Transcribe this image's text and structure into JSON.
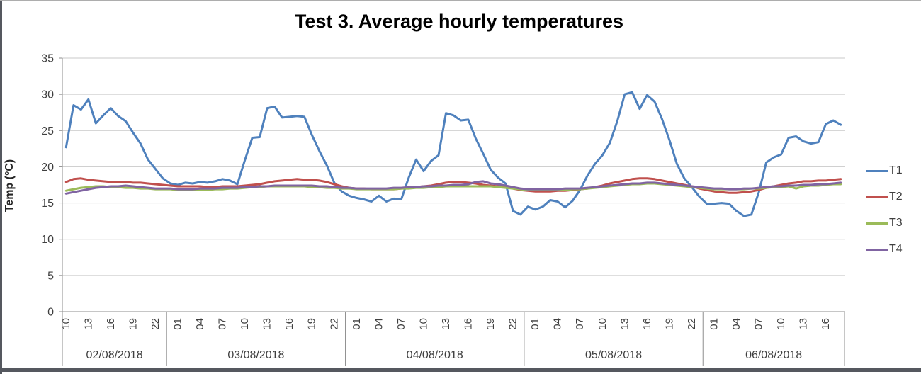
{
  "window": {
    "background": "#ffffff",
    "frame_border_color": "#adadad",
    "bottom_bar_color": "#55585f",
    "gridline_color": "#c9c9c9",
    "axis_line_color": "#8e8e8e",
    "axis_text_color": "#3f3f3f"
  },
  "chart_data": {
    "type": "line",
    "title": "Test 3. Average hourly temperatures",
    "xlabel": "",
    "ylabel": "Temp (°C)",
    "ylim": [
      0,
      35
    ],
    "y_ticks": [
      0,
      5,
      10,
      15,
      20,
      25,
      30,
      35
    ],
    "grid": "horizontal",
    "legend_position": "right",
    "x_note": "hourly categories grouped by date; tick labels shown every 3rd hour",
    "x_days": [
      {
        "date": "02/08/2018",
        "hours": [
          10,
          11,
          12,
          13,
          14,
          15,
          16,
          17,
          18,
          19,
          20,
          21,
          22,
          23
        ]
      },
      {
        "date": "03/08/2018",
        "hours": [
          0,
          1,
          2,
          3,
          4,
          5,
          6,
          7,
          8,
          9,
          10,
          11,
          12,
          13,
          14,
          15,
          16,
          17,
          18,
          19,
          20,
          21,
          22,
          23
        ]
      },
      {
        "date": "04/08/2018",
        "hours": [
          0,
          1,
          2,
          3,
          4,
          5,
          6,
          7,
          8,
          9,
          10,
          11,
          12,
          13,
          14,
          15,
          16,
          17,
          18,
          19,
          20,
          21,
          22,
          23
        ]
      },
      {
        "date": "05/08/2018",
        "hours": [
          0,
          1,
          2,
          3,
          4,
          5,
          6,
          7,
          8,
          9,
          10,
          11,
          12,
          13,
          14,
          15,
          16,
          17,
          18,
          19,
          20,
          21,
          22,
          23
        ]
      },
      {
        "date": "06/08/2018",
        "hours": [
          0,
          1,
          2,
          3,
          4,
          5,
          6,
          7,
          8,
          9,
          10,
          11,
          12,
          13,
          14,
          15,
          16,
          17,
          18
        ]
      }
    ],
    "hour_labels_shown": [
      "10",
      "13",
      "16",
      "19",
      "22",
      "01",
      "04",
      "07",
      "10",
      "13",
      "16",
      "19",
      "22",
      "01",
      "04",
      "07",
      "10",
      "13",
      "16",
      "19",
      "22",
      "01",
      "04",
      "07",
      "10",
      "13",
      "16",
      "19",
      "22",
      "01",
      "04",
      "07",
      "10",
      "13",
      "16"
    ],
    "series": [
      {
        "name": "T1",
        "color": "#4F81BD",
        "values": [
          22.7,
          28.5,
          27.9,
          29.3,
          26.0,
          27.1,
          28.1,
          27.0,
          26.3,
          24.7,
          23.2,
          21.0,
          19.7,
          18.4,
          17.7,
          17.5,
          17.8,
          17.7,
          17.9,
          17.8,
          18.0,
          18.3,
          18.1,
          17.6,
          20.9,
          24.0,
          24.1,
          28.1,
          28.3,
          26.8,
          26.9,
          27.0,
          26.9,
          24.4,
          22.2,
          20.2,
          17.8,
          16.6,
          16.0,
          15.7,
          15.5,
          15.2,
          16.0,
          15.2,
          15.6,
          15.5,
          18.5,
          21.0,
          19.4,
          20.8,
          21.6,
          27.4,
          27.1,
          26.4,
          26.5,
          23.9,
          21.8,
          19.6,
          18.5,
          17.7,
          13.9,
          13.4,
          14.5,
          14.1,
          14.5,
          15.4,
          15.2,
          14.4,
          15.3,
          16.8,
          18.8,
          20.4,
          21.6,
          23.3,
          26.3,
          30.0,
          30.3,
          28.0,
          29.9,
          29.0,
          26.6,
          23.7,
          20.4,
          18.4,
          17.2,
          15.9,
          14.9,
          14.9,
          15.0,
          14.9,
          13.9,
          13.2,
          13.4,
          16.5,
          20.6,
          21.3,
          21.7,
          24.0,
          24.2,
          23.5,
          23.2,
          23.4,
          25.9,
          26.4,
          25.8
        ]
      },
      {
        "name": "T2",
        "color": "#C0504D",
        "values": [
          17.9,
          18.3,
          18.4,
          18.2,
          18.1,
          18.0,
          17.9,
          17.9,
          17.9,
          17.8,
          17.8,
          17.7,
          17.6,
          17.5,
          17.4,
          17.3,
          17.3,
          17.3,
          17.3,
          17.2,
          17.2,
          17.3,
          17.3,
          17.3,
          17.4,
          17.5,
          17.6,
          17.8,
          18.0,
          18.1,
          18.2,
          18.3,
          18.2,
          18.2,
          18.1,
          17.9,
          17.6,
          17.3,
          17.1,
          17.0,
          17.0,
          16.9,
          16.9,
          16.9,
          16.9,
          17.0,
          17.1,
          17.2,
          17.3,
          17.4,
          17.6,
          17.8,
          17.9,
          17.9,
          17.8,
          17.7,
          17.5,
          17.4,
          17.3,
          17.2,
          17.0,
          16.8,
          16.7,
          16.6,
          16.6,
          16.6,
          16.7,
          16.7,
          16.8,
          16.9,
          17.0,
          17.2,
          17.4,
          17.7,
          17.9,
          18.1,
          18.3,
          18.4,
          18.4,
          18.3,
          18.1,
          17.9,
          17.7,
          17.5,
          17.3,
          17.0,
          16.8,
          16.6,
          16.5,
          16.4,
          16.4,
          16.5,
          16.6,
          16.8,
          17.1,
          17.3,
          17.5,
          17.7,
          17.8,
          18.0,
          18.0,
          18.1,
          18.1,
          18.2,
          18.3
        ]
      },
      {
        "name": "T3",
        "color": "#9BBB59",
        "values": [
          16.7,
          16.9,
          17.1,
          17.2,
          17.3,
          17.3,
          17.2,
          17.2,
          17.1,
          17.1,
          17.0,
          17.0,
          16.9,
          16.9,
          16.9,
          16.8,
          16.8,
          16.8,
          16.8,
          16.8,
          16.9,
          16.9,
          17.0,
          17.0,
          17.1,
          17.2,
          17.2,
          17.3,
          17.3,
          17.3,
          17.3,
          17.3,
          17.3,
          17.2,
          17.2,
          17.1,
          17.1,
          17.0,
          17.0,
          16.9,
          16.9,
          16.9,
          16.9,
          16.9,
          16.9,
          17.0,
          17.0,
          17.1,
          17.1,
          17.2,
          17.2,
          17.3,
          17.3,
          17.3,
          17.3,
          17.3,
          17.3,
          17.3,
          17.2,
          17.1,
          17.0,
          16.9,
          16.8,
          16.8,
          16.8,
          16.8,
          16.8,
          16.8,
          16.9,
          16.9,
          17.0,
          17.1,
          17.2,
          17.3,
          17.4,
          17.5,
          17.6,
          17.6,
          17.7,
          17.7,
          17.6,
          17.5,
          17.4,
          17.3,
          17.2,
          17.1,
          17.0,
          16.9,
          16.9,
          16.9,
          16.9,
          16.9,
          17.0,
          17.0,
          17.1,
          17.2,
          17.2,
          17.3,
          17.0,
          17.3,
          17.4,
          17.4,
          17.5,
          17.6,
          17.6
        ]
      },
      {
        "name": "T4",
        "color": "#8064A2",
        "values": [
          16.3,
          16.5,
          16.7,
          16.9,
          17.1,
          17.2,
          17.3,
          17.3,
          17.4,
          17.3,
          17.2,
          17.1,
          17.0,
          17.0,
          17.0,
          16.9,
          16.9,
          16.9,
          17.0,
          17.0,
          17.0,
          17.1,
          17.1,
          17.1,
          17.2,
          17.2,
          17.3,
          17.3,
          17.4,
          17.4,
          17.4,
          17.4,
          17.4,
          17.4,
          17.3,
          17.3,
          17.2,
          17.1,
          17.1,
          17.0,
          17.0,
          17.0,
          17.0,
          17.0,
          17.1,
          17.1,
          17.2,
          17.2,
          17.3,
          17.3,
          17.4,
          17.4,
          17.5,
          17.5,
          17.6,
          17.9,
          18.0,
          17.7,
          17.6,
          17.4,
          17.2,
          17.0,
          16.9,
          16.9,
          16.9,
          16.9,
          16.9,
          17.0,
          17.0,
          17.0,
          17.1,
          17.2,
          17.3,
          17.4,
          17.5,
          17.6,
          17.7,
          17.7,
          17.8,
          17.8,
          17.7,
          17.6,
          17.5,
          17.4,
          17.3,
          17.2,
          17.1,
          17.0,
          17.0,
          16.9,
          16.9,
          17.0,
          17.0,
          17.1,
          17.2,
          17.3,
          17.3,
          17.4,
          17.4,
          17.5,
          17.5,
          17.6,
          17.6,
          17.7,
          17.8
        ]
      }
    ]
  }
}
